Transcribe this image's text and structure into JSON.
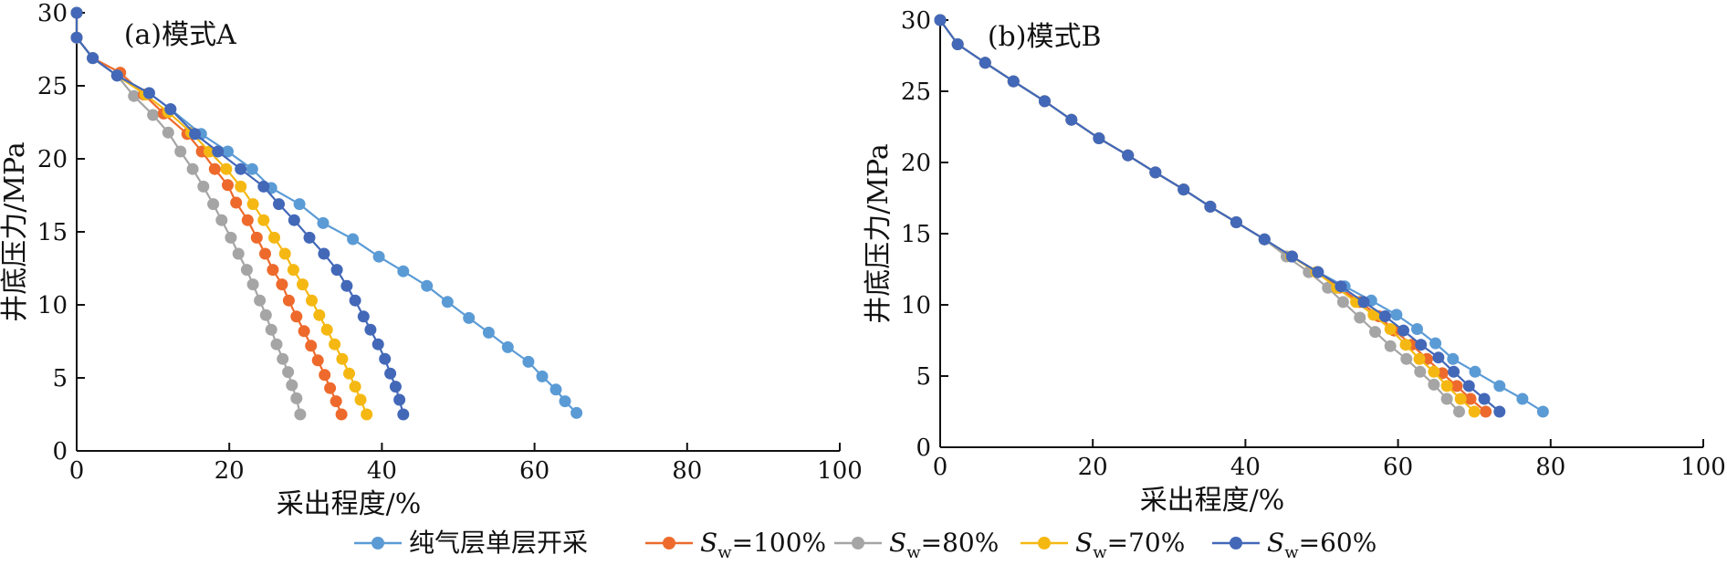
{
  "legend": {
    "items": [
      {
        "key": "pure",
        "label": "纯气层单层开采",
        "sym": "",
        "sub": "",
        "val": ""
      },
      {
        "key": "sw100",
        "label": "",
        "sym": "S",
        "sub": "w",
        "val": "=100%"
      },
      {
        "key": "sw80",
        "label": "",
        "sym": "S",
        "sub": "w",
        "val": "=80%"
      },
      {
        "key": "sw70",
        "label": "",
        "sym": "S",
        "sub": "w",
        "val": "=70%"
      },
      {
        "key": "sw60",
        "label": "",
        "sym": "S",
        "sub": "w",
        "val": "=60%"
      }
    ]
  },
  "colors": {
    "pure": "#5b9bd5",
    "sw100": "#ed6a2c",
    "sw80": "#a5a5a5",
    "sw70": "#f5b813",
    "sw60": "#4368b8"
  },
  "chart_data": [
    {
      "type": "line",
      "title": "(a)模式A",
      "xlabel": "采出程度/%",
      "ylabel": "井底压力/MPa",
      "xlim": [
        0,
        100
      ],
      "ylim": [
        0,
        30
      ],
      "xticks": [
        0,
        20,
        40,
        60,
        80,
        100
      ],
      "yticks": [
        0,
        5,
        10,
        15,
        20,
        25,
        30
      ],
      "grid": false,
      "series": [
        {
          "key": "pure",
          "name": "纯气层单层开采",
          "points": [
            [
              0,
              30
            ],
            [
              0,
              28.3
            ],
            [
              2.1,
              26.9
            ],
            [
              5.3,
              25.7
            ],
            [
              9.5,
              24.5
            ],
            [
              12.3,
              23.4
            ],
            [
              16.3,
              21.7
            ],
            [
              19.8,
              20.5
            ],
            [
              23,
              19.3
            ],
            [
              25.5,
              18
            ],
            [
              29.2,
              16.9
            ],
            [
              32.3,
              15.6
            ],
            [
              36.2,
              14.5
            ],
            [
              39.6,
              13.3
            ],
            [
              42.8,
              12.3
            ],
            [
              45.9,
              11.3
            ],
            [
              48.6,
              10.2
            ],
            [
              51.4,
              9.1
            ],
            [
              54,
              8.1
            ],
            [
              56.5,
              7.1
            ],
            [
              59.2,
              6.1
            ],
            [
              61,
              5.1
            ],
            [
              62.8,
              4.2
            ],
            [
              64,
              3.4
            ],
            [
              65.5,
              2.6
            ]
          ]
        },
        {
          "key": "sw100",
          "name": "",
          "points": [
            [
              0,
              30
            ],
            [
              0,
              28.3
            ],
            [
              2.1,
              26.9
            ],
            [
              5.7,
              25.9
            ],
            [
              8.8,
              24.4
            ],
            [
              11.4,
              23.1
            ],
            [
              14.5,
              21.7
            ],
            [
              16.4,
              20.5
            ],
            [
              18.1,
              19.3
            ],
            [
              19.8,
              18.2
            ],
            [
              20.9,
              17
            ],
            [
              22.4,
              15.8
            ],
            [
              23.6,
              14.6
            ],
            [
              24.7,
              13.5
            ],
            [
              25.7,
              12.4
            ],
            [
              26.9,
              11.4
            ],
            [
              27.8,
              10.3
            ],
            [
              28.8,
              9.2
            ],
            [
              29.8,
              8.2
            ],
            [
              30.7,
              7.2
            ],
            [
              31.6,
              6.2
            ],
            [
              32.5,
              5.2
            ],
            [
              33.2,
              4.3
            ],
            [
              34,
              3.4
            ],
            [
              34.7,
              2.5
            ]
          ]
        },
        {
          "key": "sw80",
          "name": "",
          "points": [
            [
              0,
              30
            ],
            [
              0,
              28.3
            ],
            [
              2.1,
              26.9
            ],
            [
              5.3,
              25.7
            ],
            [
              7.5,
              24.3
            ],
            [
              10,
              23
            ],
            [
              12,
              21.8
            ],
            [
              13.6,
              20.5
            ],
            [
              15.2,
              19.3
            ],
            [
              16.6,
              18.1
            ],
            [
              17.9,
              16.9
            ],
            [
              19,
              15.8
            ],
            [
              20.2,
              14.6
            ],
            [
              21.2,
              13.5
            ],
            [
              22.3,
              12.4
            ],
            [
              23.1,
              11.4
            ],
            [
              24,
              10.3
            ],
            [
              24.8,
              9.3
            ],
            [
              25.5,
              8.3
            ],
            [
              26.2,
              7.3
            ],
            [
              27,
              6.3
            ],
            [
              27.7,
              5.4
            ],
            [
              28.2,
              4.5
            ],
            [
              28.8,
              3.6
            ],
            [
              29.3,
              2.5
            ]
          ]
        },
        {
          "key": "sw70",
          "name": "",
          "points": [
            [
              0,
              30
            ],
            [
              0,
              28.3
            ],
            [
              2.1,
              26.9
            ],
            [
              5.3,
              25.7
            ],
            [
              9,
              24.4
            ],
            [
              12,
              23.2
            ],
            [
              15,
              21.8
            ],
            [
              17.4,
              20.5
            ],
            [
              19.6,
              19.3
            ],
            [
              21.5,
              18.1
            ],
            [
              23.1,
              16.9
            ],
            [
              24.5,
              15.8
            ],
            [
              25.9,
              14.6
            ],
            [
              27.3,
              13.5
            ],
            [
              28.4,
              12.4
            ],
            [
              29.6,
              11.4
            ],
            [
              30.8,
              10.3
            ],
            [
              31.8,
              9.3
            ],
            [
              32.8,
              8.3
            ],
            [
              33.8,
              7.3
            ],
            [
              34.8,
              6.3
            ],
            [
              35.7,
              5.3
            ],
            [
              36.5,
              4.4
            ],
            [
              37.2,
              3.5
            ],
            [
              38,
              2.5
            ]
          ]
        },
        {
          "key": "sw60",
          "name": "",
          "points": [
            [
              0,
              30
            ],
            [
              0,
              28.3
            ],
            [
              2.1,
              26.9
            ],
            [
              5.3,
              25.7
            ],
            [
              9.5,
              24.5
            ],
            [
              12.3,
              23.4
            ],
            [
              15.5,
              21.7
            ],
            [
              18.5,
              20.5
            ],
            [
              21.5,
              19.3
            ],
            [
              24.5,
              18.1
            ],
            [
              26.5,
              16.9
            ],
            [
              28.5,
              15.8
            ],
            [
              30.5,
              14.6
            ],
            [
              32.4,
              13.5
            ],
            [
              34.1,
              12.4
            ],
            [
              35.4,
              11.3
            ],
            [
              36.5,
              10.3
            ],
            [
              37.6,
              9.2
            ],
            [
              38.5,
              8.3
            ],
            [
              39.5,
              7.3
            ],
            [
              40.4,
              6.3
            ],
            [
              41.1,
              5.3
            ],
            [
              41.8,
              4.4
            ],
            [
              42.3,
              3.5
            ],
            [
              42.8,
              2.5
            ]
          ]
        }
      ]
    },
    {
      "type": "line",
      "title": "(b)模式B",
      "xlabel": "采出程度/%",
      "ylabel": "井底压力/MPa",
      "xlim": [
        0,
        100
      ],
      "ylim": [
        0,
        30
      ],
      "xticks": [
        0,
        20,
        40,
        60,
        80,
        100
      ],
      "yticks": [
        0,
        5,
        10,
        15,
        20,
        25,
        30
      ],
      "grid": false,
      "series": [
        {
          "key": "pure",
          "name": "纯气层单层开采",
          "points": [
            [
              0,
              30
            ],
            [
              2.3,
              28.3
            ],
            [
              5.9,
              27
            ],
            [
              9.6,
              25.7
            ],
            [
              13.7,
              24.3
            ],
            [
              17.2,
              23
            ],
            [
              20.8,
              21.7
            ],
            [
              24.6,
              20.5
            ],
            [
              28.2,
              19.3
            ],
            [
              31.9,
              18.1
            ],
            [
              35.4,
              16.9
            ],
            [
              38.8,
              15.8
            ],
            [
              42.5,
              14.6
            ],
            [
              46.1,
              13.4
            ],
            [
              49.5,
              12.3
            ],
            [
              53,
              11.3
            ],
            [
              56.5,
              10.3
            ],
            [
              59.8,
              9.3
            ],
            [
              62.5,
              8.3
            ],
            [
              64.9,
              7.3
            ],
            [
              67.2,
              6.2
            ],
            [
              70.1,
              5.3
            ],
            [
              73.3,
              4.3
            ],
            [
              76.3,
              3.4
            ],
            [
              79,
              2.5
            ]
          ]
        },
        {
          "key": "sw100",
          "name": "",
          "points": [
            [
              0,
              30
            ],
            [
              2.3,
              28.3
            ],
            [
              5.9,
              27
            ],
            [
              9.6,
              25.7
            ],
            [
              13.7,
              24.3
            ],
            [
              17.2,
              23
            ],
            [
              20.8,
              21.7
            ],
            [
              24.6,
              20.5
            ],
            [
              28.2,
              19.3
            ],
            [
              31.9,
              18.1
            ],
            [
              35.4,
              16.9
            ],
            [
              38.8,
              15.8
            ],
            [
              42.5,
              14.6
            ],
            [
              46.1,
              13.4
            ],
            [
              49.5,
              12.3
            ],
            [
              52.3,
              11.2
            ],
            [
              55,
              10.2
            ],
            [
              57.5,
              9.2
            ],
            [
              59.5,
              8.2
            ],
            [
              61.8,
              7.2
            ],
            [
              63.8,
              6.2
            ],
            [
              65.8,
              5.2
            ],
            [
              67.7,
              4.3
            ],
            [
              69.5,
              3.4
            ],
            [
              71.5,
              2.5
            ]
          ]
        },
        {
          "key": "sw80",
          "name": "",
          "points": [
            [
              0,
              30
            ],
            [
              2.3,
              28.3
            ],
            [
              5.9,
              27
            ],
            [
              9.6,
              25.7
            ],
            [
              13.7,
              24.3
            ],
            [
              17.2,
              23
            ],
            [
              20.8,
              21.7
            ],
            [
              24.6,
              20.5
            ],
            [
              28.2,
              19.3
            ],
            [
              31.9,
              18.1
            ],
            [
              35.4,
              16.9
            ],
            [
              38.8,
              15.8
            ],
            [
              42.5,
              14.6
            ],
            [
              45.4,
              13.4
            ],
            [
              48.3,
              12.3
            ],
            [
              50.8,
              11.2
            ],
            [
              52.8,
              10.2
            ],
            [
              55,
              9.1
            ],
            [
              57,
              8.1
            ],
            [
              59,
              7.1
            ],
            [
              61.1,
              6.2
            ],
            [
              62.9,
              5.3
            ],
            [
              64.7,
              4.4
            ],
            [
              66.4,
              3.4
            ],
            [
              68,
              2.5
            ]
          ]
        },
        {
          "key": "sw70",
          "name": "",
          "points": [
            [
              0,
              30
            ],
            [
              2.3,
              28.3
            ],
            [
              5.9,
              27
            ],
            [
              9.6,
              25.7
            ],
            [
              13.7,
              24.3
            ],
            [
              17.2,
              23
            ],
            [
              20.8,
              21.7
            ],
            [
              24.6,
              20.5
            ],
            [
              28.2,
              19.3
            ],
            [
              31.9,
              18.1
            ],
            [
              35.4,
              16.9
            ],
            [
              38.8,
              15.8
            ],
            [
              42.5,
              14.6
            ],
            [
              46,
              13.4
            ],
            [
              49.3,
              12.3
            ],
            [
              52,
              11.2
            ],
            [
              54.5,
              10.2
            ],
            [
              56.8,
              9.3
            ],
            [
              59,
              8.3
            ],
            [
              61,
              7.2
            ],
            [
              62.8,
              6.2
            ],
            [
              64.7,
              5.3
            ],
            [
              66.4,
              4.3
            ],
            [
              68.2,
              3.4
            ],
            [
              70,
              2.5
            ]
          ]
        },
        {
          "key": "sw60",
          "name": "",
          "points": [
            [
              0,
              30
            ],
            [
              2.3,
              28.3
            ],
            [
              5.9,
              27
            ],
            [
              9.6,
              25.7
            ],
            [
              13.7,
              24.3
            ],
            [
              17.2,
              23
            ],
            [
              20.8,
              21.7
            ],
            [
              24.6,
              20.5
            ],
            [
              28.2,
              19.3
            ],
            [
              31.9,
              18.1
            ],
            [
              35.4,
              16.9
            ],
            [
              38.8,
              15.8
            ],
            [
              42.5,
              14.6
            ],
            [
              46.1,
              13.4
            ],
            [
              49.5,
              12.3
            ],
            [
              52.5,
              11.3
            ],
            [
              55.5,
              10.2
            ],
            [
              58.3,
              9.2
            ],
            [
              60.7,
              8.2
            ],
            [
              63,
              7.2
            ],
            [
              65.3,
              6.3
            ],
            [
              67.3,
              5.3
            ],
            [
              69.3,
              4.3
            ],
            [
              71.3,
              3.4
            ],
            [
              73.3,
              2.5
            ]
          ]
        }
      ]
    }
  ]
}
